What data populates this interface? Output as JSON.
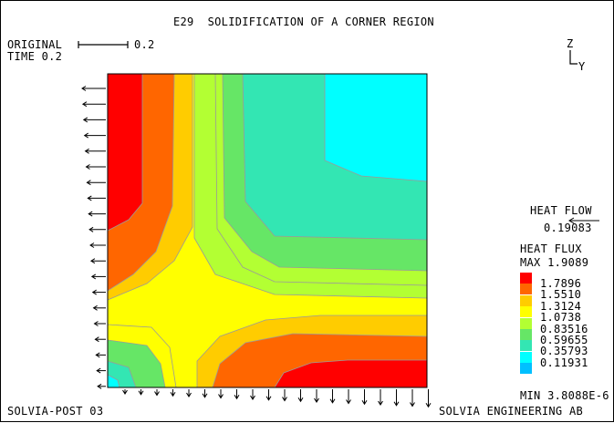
{
  "title": "E29  SOLIDIFICATION OF A CORNER REGION",
  "scale": {
    "label": "ORIGINAL",
    "value": "0.2"
  },
  "time_label": "TIME 0.2",
  "axes_triad": {
    "z": "Z",
    "y": "Y"
  },
  "heat_flow": {
    "label": "HEAT FLOW",
    "value": "0.19083"
  },
  "heat_flux": {
    "label": "HEAT FLUX",
    "max_label": "MAX 1.9089",
    "min_label": "MIN 3.8088E-6",
    "levels": [
      {
        "label": "1.7896",
        "color": "#ff0000"
      },
      {
        "label": "1.5510",
        "color": "#ff6600"
      },
      {
        "label": "1.3124",
        "color": "#ffcc00"
      },
      {
        "label": "1.0738",
        "color": "#ffff00"
      },
      {
        "label": "0.83516",
        "color": "#b3ff33"
      },
      {
        "label": "0.59655",
        "color": "#66e666"
      },
      {
        "label": "0.35793",
        "color": "#33e6b3"
      },
      {
        "label": "0.11931",
        "color": "#00ffff"
      },
      {
        "label": "",
        "color": "#00c0ff"
      }
    ]
  },
  "footer": {
    "left": "SOLVIA-POST 03",
    "right": "SOLVIA ENGINEERING AB"
  }
}
